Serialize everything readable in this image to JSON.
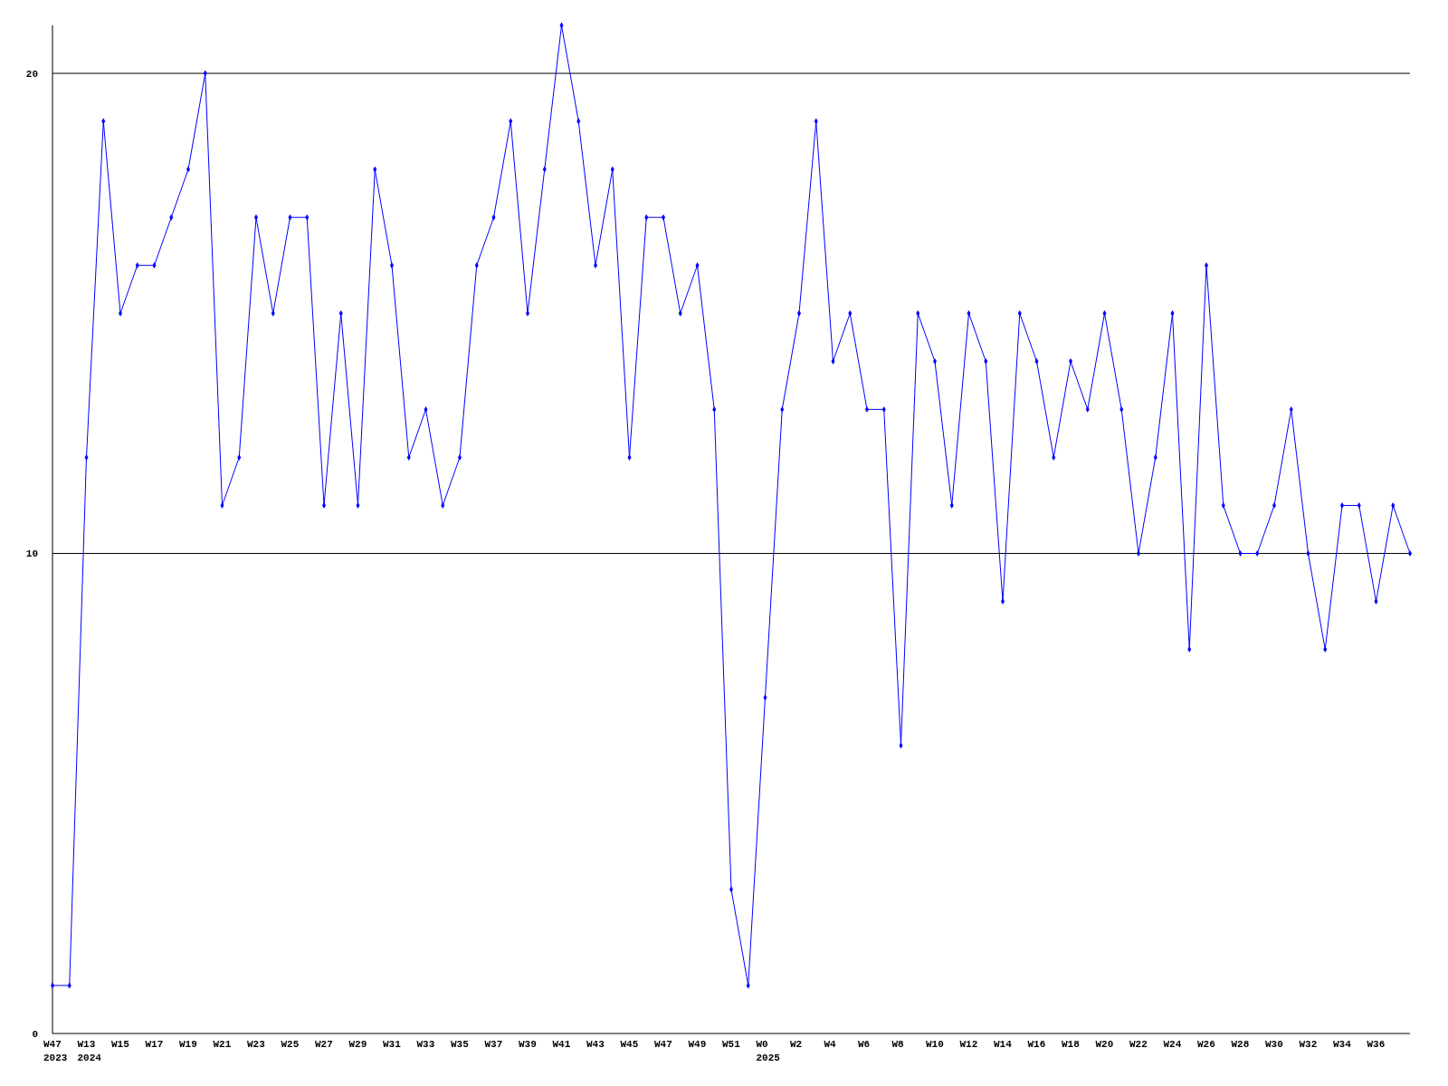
{
  "chart_data": {
    "type": "line",
    "categories": [
      "W47\n2023",
      null,
      "W13\n2024",
      null,
      "W15",
      null,
      "W17",
      null,
      "W19",
      null,
      "W21",
      null,
      "W23",
      null,
      "W25",
      null,
      "W27",
      null,
      "W29",
      null,
      "W31",
      null,
      "W33",
      null,
      "W35",
      null,
      "W37",
      null,
      "W39",
      null,
      "W41",
      null,
      "W43",
      null,
      "W45",
      null,
      "W47",
      null,
      "W49",
      null,
      "W51",
      null,
      "W0\n2025",
      null,
      "W2",
      null,
      "W4",
      null,
      "W6",
      null,
      "W8",
      null,
      "W10",
      null,
      "W12",
      null,
      "W14",
      null,
      "W16",
      null,
      "W18",
      null,
      "W20",
      null,
      "W22",
      null,
      "W24",
      null,
      "W26",
      null,
      "W28",
      null,
      "W30",
      null,
      "W32",
      null,
      "W34",
      null,
      "W36",
      null,
      null
    ],
    "series": [
      {
        "color": "#0000ff",
        "values": [
          1,
          1,
          12,
          19,
          15,
          16,
          16,
          17,
          18,
          20,
          11,
          12,
          17,
          15,
          17,
          17,
          11,
          15,
          11,
          18,
          16,
          12,
          13,
          11,
          12,
          16,
          17,
          19,
          15,
          18,
          21,
          19,
          16,
          18,
          12,
          17,
          17,
          15,
          16,
          13,
          3,
          1,
          7,
          13,
          15,
          19,
          14,
          15,
          13,
          13,
          6,
          15,
          14,
          11,
          15,
          14,
          9,
          15,
          14,
          12,
          14,
          13,
          15,
          13,
          10,
          12,
          15,
          8,
          16,
          11,
          10,
          10,
          11,
          13,
          10,
          8,
          11,
          11,
          9,
          11,
          10
        ]
      }
    ],
    "ylim": [
      0,
      21
    ],
    "yticks": [
      0,
      10,
      20
    ],
    "grid": "y",
    "marker": "diamond",
    "line_style": "solid"
  }
}
